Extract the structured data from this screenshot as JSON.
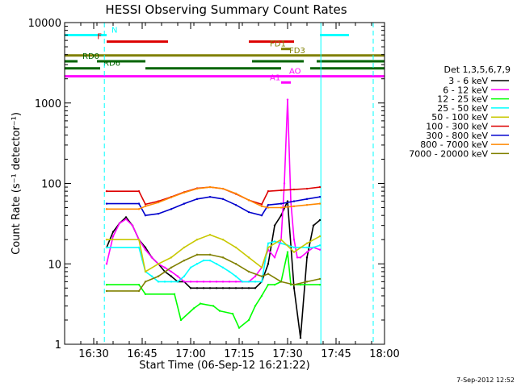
{
  "chart_data": {
    "type": "line",
    "title": "HESSI Observing Summary Count Rates",
    "xlabel": "Start Time (06-Sep-12 16:21:22)",
    "ylabel": "Count Rate (s⁻¹ detector⁻¹)",
    "yscale": "log",
    "ylim": [
      1,
      10000
    ],
    "xlim_minutes": [
      0,
      99
    ],
    "x_ticks": [
      {
        "t": 9,
        "label": "16:30"
      },
      {
        "t": 24,
        "label": "16:45"
      },
      {
        "t": 39,
        "label": "17:00"
      },
      {
        "t": 54,
        "label": "17:15"
      },
      {
        "t": 69,
        "label": "17:30"
      },
      {
        "t": 84,
        "label": "17:45"
      },
      {
        "t": 99,
        "label": "18:00"
      }
    ],
    "y_ticks": [
      {
        "v": 1,
        "label": "1"
      },
      {
        "v": 10,
        "label": "10"
      },
      {
        "v": 100,
        "label": "100"
      },
      {
        "v": 1000,
        "label": "1000"
      },
      {
        "v": 10000,
        "label": "10000"
      }
    ],
    "legend_title": "Det 1,3,5,6,7,9",
    "legend_position": "right",
    "grid": false,
    "series": [
      {
        "name": "3 - 6 keV",
        "color": "#000000",
        "x": [
          13,
          15,
          17,
          19,
          21,
          23,
          25,
          27,
          29,
          31,
          33,
          35,
          37,
          39,
          41,
          43,
          45,
          47,
          49,
          51,
          53,
          55,
          57,
          59,
          61,
          63,
          65,
          67,
          69,
          71,
          73,
          75,
          77,
          79
        ],
        "y": [
          16,
          25,
          32,
          38,
          30,
          20,
          16,
          12,
          10,
          8,
          7,
          6,
          6,
          5,
          5,
          5,
          5,
          5,
          5,
          5,
          5,
          5,
          5,
          5,
          6,
          10,
          30,
          40,
          60,
          5,
          1.2,
          12,
          30,
          35
        ]
      },
      {
        "name": "6 - 12 keV",
        "color": "#ff00ff",
        "x": [
          13,
          15,
          17,
          19,
          21,
          23,
          25,
          27,
          29,
          31,
          33,
          35,
          37,
          39,
          41,
          43,
          45,
          47,
          49,
          51,
          53,
          55,
          57,
          59,
          61,
          63,
          65,
          67,
          68,
          69,
          70,
          71,
          72,
          73,
          75,
          77,
          79
        ],
        "y": [
          10,
          22,
          32,
          36,
          30,
          20,
          15,
          12,
          10,
          9,
          8,
          7,
          6,
          6,
          6,
          6,
          6,
          6,
          6,
          6,
          6,
          6,
          6,
          7,
          9,
          15,
          12,
          20,
          100,
          1100,
          60,
          20,
          12,
          12,
          14,
          16,
          15
        ]
      },
      {
        "name": "12 - 25 keV",
        "color": "#00ff00",
        "x": [
          13,
          23,
          25,
          34,
          36,
          40,
          42,
          46,
          48,
          52,
          54,
          57,
          59,
          61,
          63,
          65,
          67,
          69,
          70,
          71,
          73,
          79
        ],
        "y": [
          5.5,
          5.5,
          4.2,
          4.2,
          2,
          2.8,
          3.2,
          3,
          2.6,
          2.4,
          1.6,
          2,
          3,
          4,
          5.5,
          5.5,
          6,
          14,
          5.5,
          5.5,
          5.5,
          5.5
        ]
      },
      {
        "name": "25 - 50 keV",
        "color": "#00ffff",
        "x": [
          13,
          23,
          25,
          27,
          29,
          31,
          33,
          35,
          37,
          39,
          41,
          43,
          45,
          47,
          49,
          51,
          53,
          55,
          57,
          59,
          61,
          63,
          65,
          67,
          69,
          71,
          73,
          75,
          77,
          79
        ],
        "y": [
          16,
          16,
          8,
          7,
          6,
          6,
          6,
          6,
          7,
          9,
          10,
          11,
          11,
          10,
          9,
          8,
          7,
          6,
          6,
          6,
          6,
          18,
          19,
          18,
          17,
          16,
          16,
          16,
          16,
          17
        ]
      },
      {
        "name": "50 - 100 keV",
        "color": "#c8c800",
        "x": [
          13,
          23,
          25,
          29,
          33,
          37,
          41,
          45,
          49,
          53,
          57,
          61,
          63,
          67,
          71,
          75,
          79
        ],
        "y": [
          20,
          20,
          8,
          10,
          12,
          16,
          20,
          23,
          20,
          16,
          12,
          9,
          16,
          20,
          14,
          18,
          22
        ]
      },
      {
        "name": "100 - 300 keV",
        "color": "#dd0000",
        "x": [
          13,
          23,
          25,
          29,
          33,
          37,
          41,
          45,
          49,
          53,
          57,
          61,
          63,
          67,
          71,
          75,
          79
        ],
        "y": [
          80,
          80,
          55,
          60,
          68,
          78,
          87,
          90,
          86,
          74,
          62,
          55,
          80,
          82,
          84,
          86,
          90
        ]
      },
      {
        "name": "300 - 800 keV",
        "color": "#0000cc",
        "x": [
          13,
          23,
          25,
          29,
          33,
          37,
          41,
          45,
          49,
          53,
          57,
          61,
          63,
          67,
          71,
          75,
          79
        ],
        "y": [
          56,
          56,
          40,
          42,
          48,
          56,
          64,
          68,
          64,
          54,
          44,
          40,
          54,
          56,
          60,
          64,
          68
        ]
      },
      {
        "name": "800 - 7000 keV",
        "color": "#ff8800",
        "x": [
          13,
          23,
          25,
          29,
          33,
          37,
          41,
          45,
          49,
          53,
          57,
          61,
          63,
          67,
          71,
          75,
          79
        ],
        "y": [
          48,
          48,
          52,
          58,
          67,
          77,
          86,
          90,
          86,
          75,
          62,
          52,
          50,
          50,
          52,
          54,
          56
        ]
      },
      {
        "name": "7000 - 20000 keV",
        "color": "#808000",
        "x": [
          13,
          23,
          25,
          29,
          33,
          37,
          41,
          45,
          49,
          53,
          57,
          61,
          63,
          67,
          71,
          75,
          79
        ],
        "y": [
          4.6,
          4.6,
          6,
          7,
          9,
          11,
          13,
          13,
          12,
          10,
          8,
          7,
          7.5,
          6,
          5.5,
          6,
          6.5
        ]
      }
    ],
    "flags": [
      {
        "label": "N",
        "color": "#00ffff",
        "y": 7000,
        "segments": [
          [
            0,
            13
          ],
          [
            79,
            88
          ]
        ],
        "label_t": 14,
        "label_side": "right"
      },
      {
        "label": "F",
        "color": "#dd0000",
        "y": 5800,
        "segments": [
          [
            13,
            32
          ],
          [
            57,
            71
          ]
        ],
        "label_t": 12,
        "label_side": "left"
      },
      {
        "label": "FD1",
        "color": "#808000",
        "y": 4700,
        "segments": [
          [
            67,
            70
          ]
        ],
        "label_t": 63,
        "label_side": "right"
      },
      {
        "label": "FD3",
        "color": "#808000",
        "y": 3900,
        "segments": [
          [
            0,
            99
          ]
        ],
        "label_t": 69,
        "label_side": "right"
      },
      {
        "label": "RD0",
        "color": "#006400",
        "y": 3300,
        "segments": [
          [
            0,
            4
          ],
          [
            10,
            25
          ],
          [
            58,
            74
          ],
          [
            78,
            99
          ]
        ],
        "label_t": 5,
        "label_side": "right"
      },
      {
        "label": "RD6",
        "color": "#006400",
        "y": 2700,
        "segments": [
          [
            0,
            11
          ],
          [
            25,
            67
          ],
          [
            76,
            99
          ]
        ],
        "label_t": 11.5,
        "label_side": "right"
      },
      {
        "label": "AO",
        "color": "#ff00ff",
        "y": 2150,
        "segments": [
          [
            0,
            99
          ]
        ],
        "label_t": 69,
        "label_side": "right"
      },
      {
        "label": "A1",
        "color": "#ff00ff",
        "y": 1800,
        "segments": [
          [
            67,
            70
          ]
        ],
        "label_t": 63,
        "label_side": "right"
      }
    ],
    "vlines": [
      {
        "t": 0,
        "style": "solid",
        "color": "#00ffff"
      },
      {
        "t": 12.3,
        "style": "dashed",
        "color": "#00ffff"
      },
      {
        "t": 79.3,
        "style": "solid",
        "color": "#00ffff"
      },
      {
        "t": 95.5,
        "style": "dashed",
        "color": "#00ffff"
      }
    ],
    "footer": "7-Sep-2012 12:52"
  }
}
